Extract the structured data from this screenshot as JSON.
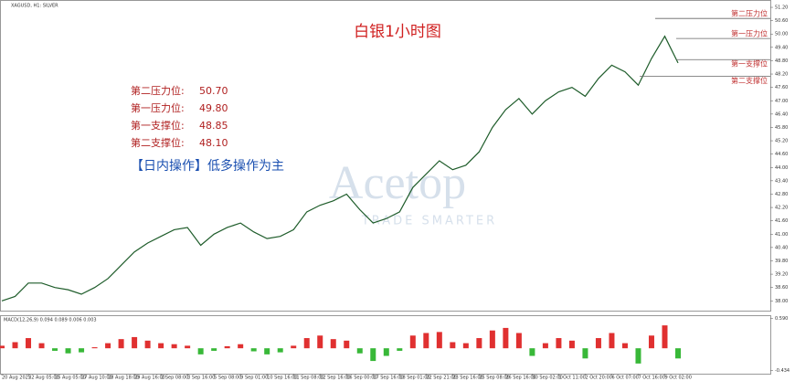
{
  "header": {
    "symbol": "XAGUSD, H1: SILVER"
  },
  "chart_data": [
    {
      "type": "line",
      "title": "白银1小时图",
      "watermark": {
        "brand": "Acetop",
        "tagline": "TRADE SMARTER"
      },
      "categories": [
        "20 Aug 2025",
        null,
        "22 Aug 05:00",
        null,
        "25 Aug 05:00",
        null,
        "27 Aug 10:00",
        null,
        "28 Aug 18:00",
        null,
        "29 Aug 16:00",
        null,
        "2 Sep 08:00",
        null,
        "3 Sep 16:00",
        null,
        "5 Sep 08:00",
        null,
        "9 Sep 01:00",
        null,
        "10 Sep 16:00",
        null,
        "11 Sep 08:00",
        null,
        "12 Sep 16:00",
        null,
        "16 Sep 00:00",
        null,
        "17 Sep 16:00",
        null,
        "18 Sep 01:00",
        null,
        "22 Sep 21:00",
        null,
        "23 Sep 16:00",
        null,
        "25 Sep 08:00",
        null,
        "26 Sep 16:00",
        null,
        "30 Sep 02:00",
        null,
        "1 Oct 11:00",
        null,
        "2 Oct 20:00",
        null,
        "6 Oct 07:00",
        null,
        "7 Oct 16:00",
        null,
        "9 Oct 02:00",
        null
      ],
      "series": [
        {
          "name": "XAGUSD",
          "color": "#1e5c2a",
          "values": [
            38.0,
            38.2,
            38.8,
            38.8,
            38.6,
            38.5,
            38.3,
            38.6,
            39.0,
            39.6,
            40.2,
            40.6,
            40.9,
            41.2,
            41.3,
            40.5,
            41.0,
            41.3,
            41.5,
            41.1,
            40.8,
            40.9,
            41.2,
            42.0,
            42.3,
            42.5,
            42.8,
            42.1,
            41.5,
            41.7,
            42.0,
            43.1,
            43.7,
            44.3,
            43.9,
            44.1,
            44.7,
            45.8,
            46.6,
            47.1,
            46.4,
            47.0,
            47.4,
            47.6,
            47.2,
            48.0,
            48.6,
            48.3,
            47.7,
            48.9,
            49.9,
            48.7
          ]
        }
      ],
      "ylim": [
        37.56,
        51.53
      ],
      "yticks": [
        {
          "value": 51.2,
          "label": "51.20"
        },
        {
          "value": 50.6,
          "label": "50.60"
        },
        {
          "value": 50.0,
          "label": "50.00"
        },
        {
          "value": 49.4,
          "label": "49.40"
        },
        {
          "value": 48.8,
          "label": "48.80"
        },
        {
          "value": 48.2,
          "label": "48.20"
        },
        {
          "value": 47.6,
          "label": "47.60"
        },
        {
          "value": 47.0,
          "label": "47.00"
        },
        {
          "value": 46.4,
          "label": "46.40"
        },
        {
          "value": 45.8,
          "label": "45.80"
        },
        {
          "value": 45.2,
          "label": "45.20"
        },
        {
          "value": 44.6,
          "label": "44.60"
        },
        {
          "value": 44.0,
          "label": "44.00"
        },
        {
          "value": 43.4,
          "label": "43.40"
        },
        {
          "value": 42.8,
          "label": "42.80"
        },
        {
          "value": 42.2,
          "label": "42.20"
        },
        {
          "value": 41.6,
          "label": "41.60"
        },
        {
          "value": 41.0,
          "label": "41.00"
        },
        {
          "value": 40.4,
          "label": "40.40"
        },
        {
          "value": 39.8,
          "label": "39.80"
        },
        {
          "value": 39.2,
          "label": "39.20"
        },
        {
          "value": 38.6,
          "label": "38.60"
        },
        {
          "value": 38.0,
          "label": "38.00"
        }
      ],
      "levels": [
        {
          "name": "第二压力位",
          "left_text": "第二压力位:",
          "value": {
            "value": 50.7,
            "label": "50.70"
          }
        },
        {
          "name": "第一压力位",
          "left_text": "第一压力位:",
          "value": {
            "value": 49.8,
            "label": "49.80"
          }
        },
        {
          "name": "第一支撑位",
          "left_text": "第一支撑位:",
          "value": {
            "value": 48.85,
            "label": "48.85"
          }
        },
        {
          "name": "第二支撑位",
          "left_text": "第二支撑位:",
          "value": {
            "value": 48.1,
            "label": "48.10"
          }
        }
      ],
      "strategy": "【日内操作】低多操作为主"
    },
    {
      "type": "bar",
      "title": "MACD(12,26,9) 0.094 0.089 0.006 0.003",
      "values": [
        0.05,
        0.12,
        0.2,
        0.1,
        -0.05,
        -0.1,
        -0.08,
        0.02,
        0.1,
        0.18,
        0.22,
        0.15,
        0.1,
        0.08,
        0.05,
        -0.12,
        -0.05,
        0.04,
        0.08,
        -0.06,
        -0.12,
        -0.08,
        0.05,
        0.2,
        0.25,
        0.18,
        0.15,
        -0.1,
        -0.25,
        -0.15,
        -0.05,
        0.25,
        0.3,
        0.32,
        0.12,
        0.1,
        0.2,
        0.35,
        0.4,
        0.3,
        -0.15,
        0.1,
        0.2,
        0.15,
        -0.2,
        0.2,
        0.3,
        0.1,
        -0.3,
        0.25,
        0.45,
        -0.2
      ],
      "color_up": "#e03030",
      "color_down": "#38b838",
      "ylim": [
        -0.5,
        0.65
      ],
      "yticks": [
        {
          "value": 0.59,
          "label": "0.590"
        },
        {
          "value": -0.434,
          "label": "-0.434"
        }
      ]
    }
  ]
}
